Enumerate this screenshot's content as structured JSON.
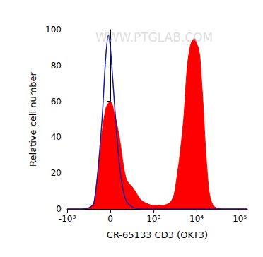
{
  "chart_data": {
    "type": "line",
    "x_label": "CR-65133 CD3 (OKT3)",
    "y_label": "Relative cell number",
    "annotations": [
      "WWW.PTGLAB.COM"
    ],
    "x": [
      -1000,
      -500,
      -300,
      -200,
      -100,
      -50,
      -20,
      0,
      50,
      100,
      150,
      200,
      300,
      400,
      500,
      700,
      1000,
      1500,
      2000,
      2500,
      3000,
      3500,
      4000,
      5000,
      6000,
      7000,
      8000,
      9000,
      10000,
      11000,
      12000,
      13000,
      14000,
      16000,
      18000,
      20000,
      24000,
      30000,
      40000,
      150000
    ],
    "series": [
      {
        "type": "area",
        "color": "#ff0000",
        "values": [
          0,
          0,
          0.5,
          4,
          40,
          56,
          59,
          60,
          52,
          40,
          25,
          16,
          12,
          8,
          5,
          3,
          2,
          2,
          2.5,
          4,
          8,
          18,
          28,
          50,
          78,
          90,
          94,
          95,
          92,
          90,
          84,
          72,
          60,
          35,
          18,
          8,
          2,
          0.5,
          0,
          0
        ]
      },
      {
        "type": "line",
        "color": "#1a1aa0",
        "values": [
          0,
          0,
          0.5,
          3,
          45,
          85,
          97,
          90,
          55,
          25,
          10,
          4,
          1,
          0.3,
          0,
          0,
          0,
          0,
          0,
          0,
          0,
          0,
          0,
          0,
          0,
          0,
          0,
          0,
          0,
          0,
          0,
          0,
          0,
          0,
          0,
          0,
          0,
          0,
          0,
          0
        ]
      }
    ],
    "xlim": [
      -1000,
      150000
    ],
    "xticks": [
      {
        "value": -1000,
        "label": "-10³"
      },
      0,
      {
        "value": 1000,
        "label": "10³"
      },
      {
        "value": 10000,
        "label": "10⁴"
      },
      {
        "value": 100000,
        "label": "10⁵"
      }
    ],
    "ylim": [
      0,
      100
    ],
    "yticks": [
      0,
      20,
      40,
      60,
      80,
      100
    ],
    "grid": false
  }
}
